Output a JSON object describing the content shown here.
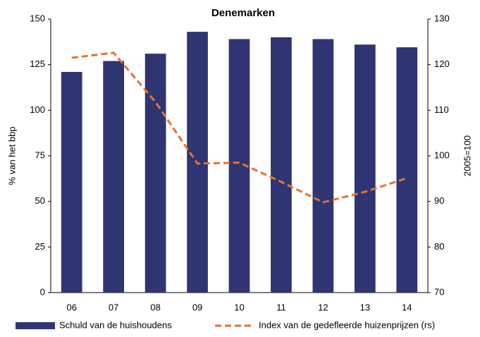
{
  "chart_data": {
    "type": "bar_line",
    "title": "Denemarken",
    "y_label": "% van het bbp",
    "y2_label": "2005=100",
    "categories": [
      "06",
      "07",
      "08",
      "09",
      "10",
      "11",
      "12",
      "13",
      "14"
    ],
    "series": [
      {
        "name": "Schuld van de huishoudens",
        "type": "bar",
        "color": "#2f3572",
        "values": [
          121,
          127,
          131,
          143,
          139,
          140,
          139,
          136,
          134.5
        ]
      },
      {
        "name": "Index van de gedefleerde huizenprijzen (rs)",
        "type": "line",
        "axis": "y2",
        "color": "#e8712c",
        "dashed": true,
        "values": [
          121.5,
          122.6,
          111.8,
          98.3,
          98.5,
          94.3,
          89.8,
          92.1,
          95.1
        ]
      }
    ],
    "ylim": [
      0,
      150
    ],
    "yticks": [
      0,
      25,
      50,
      75,
      100,
      125,
      150
    ],
    "y2lim": [
      70,
      130
    ],
    "y2ticks": [
      70,
      80,
      90,
      100,
      110,
      120,
      130
    ],
    "grid": false,
    "legend": "bottom"
  }
}
